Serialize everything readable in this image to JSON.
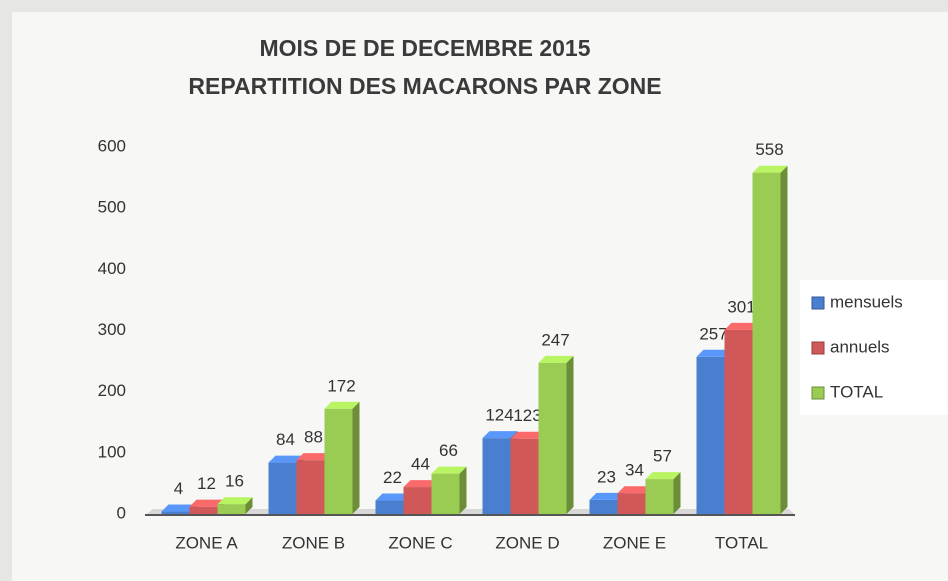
{
  "chart_data": {
    "type": "bar",
    "title": "MOIS DE DE DECEMBRE 2015",
    "subtitle": "REPARTITION DES MACARONS PAR ZONE",
    "categories": [
      "ZONE A",
      "ZONE B",
      "ZONE C",
      "ZONE D",
      "ZONE E",
      "TOTAL"
    ],
    "series": [
      {
        "name": "mensuels",
        "color": "#4a7fd0",
        "values": [
          4,
          84,
          22,
          124,
          23,
          257
        ]
      },
      {
        "name": "annuels",
        "color": "#d05858",
        "values": [
          12,
          88,
          44,
          123,
          34,
          301
        ]
      },
      {
        "name": "TOTAL",
        "color": "#9acb52",
        "values": [
          16,
          172,
          66,
          247,
          57,
          558
        ]
      }
    ],
    "ylim": [
      0,
      600
    ],
    "yticks": [
      0,
      100,
      200,
      300,
      400,
      500,
      600
    ],
    "grid": false,
    "legend": "right"
  }
}
